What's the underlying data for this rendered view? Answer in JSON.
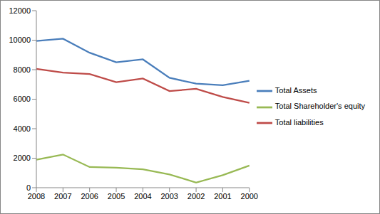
{
  "chart_data": {
    "type": "line",
    "categories": [
      "2008",
      "2007",
      "2006",
      "2005",
      "2004",
      "2003",
      "2002",
      "2001",
      "2000"
    ],
    "series": [
      {
        "name": "Total Assets",
        "color": "#4a7ebb",
        "values": [
          9950,
          10100,
          9150,
          8500,
          8700,
          7450,
          7050,
          6950,
          7250
        ]
      },
      {
        "name": "Total liabilities",
        "color": "#be4b48",
        "values": [
          8050,
          7800,
          7700,
          7150,
          7400,
          6550,
          6700,
          6150,
          5750
        ]
      },
      {
        "name": "Total Shareholder's equity",
        "color": "#98b954",
        "values": [
          1900,
          2250,
          1400,
          1350,
          1250,
          900,
          350,
          850,
          1500
        ]
      }
    ],
    "ylim": [
      0,
      12000
    ],
    "yticks": [
      0,
      2000,
      4000,
      6000,
      8000,
      10000,
      12000
    ],
    "grid": false,
    "legend": "right"
  }
}
